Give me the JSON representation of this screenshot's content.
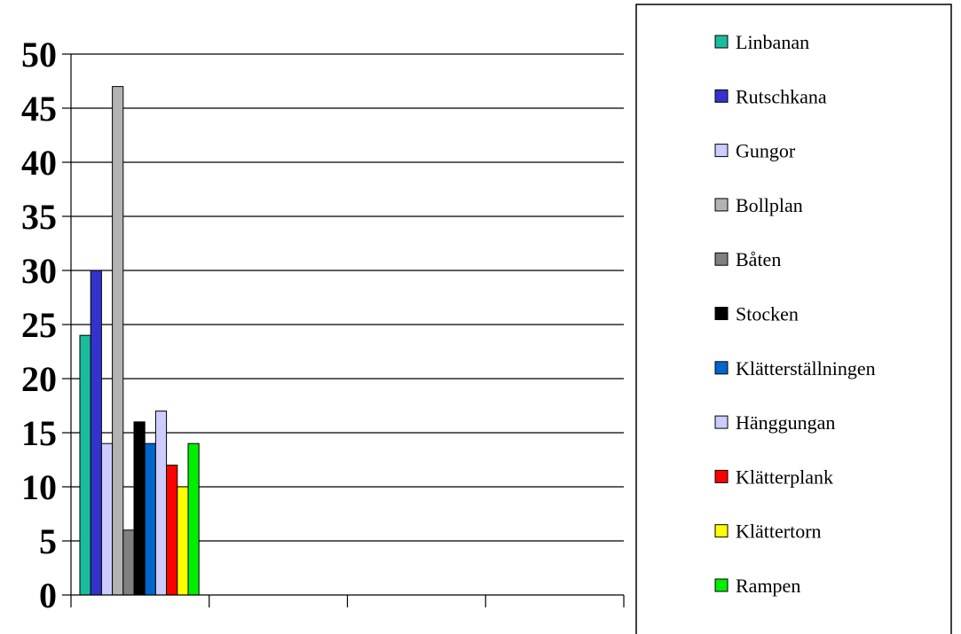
{
  "chart_data": {
    "type": "bar",
    "categories": [
      "",
      "",
      "",
      ""
    ],
    "series": [
      {
        "name": "Linbanan",
        "values": [
          24,
          0,
          0,
          0
        ],
        "color": "#1ABC9C"
      },
      {
        "name": "Rutschkana",
        "values": [
          30,
          0,
          0,
          0
        ],
        "color": "#3333CC"
      },
      {
        "name": "Gungor",
        "values": [
          14,
          0,
          0,
          0
        ],
        "color": "#CCCCFF"
      },
      {
        "name": "Bollplan",
        "values": [
          47,
          0,
          0,
          0
        ],
        "color": "#B3B3B3"
      },
      {
        "name": "Båten",
        "values": [
          6,
          0,
          0,
          0
        ],
        "color": "#808080"
      },
      {
        "name": "Stocken",
        "values": [
          16,
          0,
          0,
          0
        ],
        "color": "#000000"
      },
      {
        "name": "Klätterställningen",
        "values": [
          14,
          0,
          0,
          0
        ],
        "color": "#0066CC"
      },
      {
        "name": "Hänggungan",
        "values": [
          17,
          0,
          0,
          0
        ],
        "color": "#CCCCFF"
      },
      {
        "name": "Klätterplank",
        "values": [
          12,
          0,
          0,
          0
        ],
        "color": "#FF0000"
      },
      {
        "name": "Klättertorn",
        "values": [
          10,
          0,
          0,
          0
        ],
        "color": "#FFFF00"
      },
      {
        "name": "Rampen",
        "values": [
          14,
          0,
          0,
          0
        ],
        "color": "#00EE00"
      }
    ],
    "ylim": [
      0,
      50
    ],
    "yticks": [
      "0",
      "5",
      "10",
      "15",
      "20",
      "25",
      "30",
      "35",
      "40",
      "45",
      "50"
    ],
    "grid": true,
    "legend_position": "right"
  }
}
